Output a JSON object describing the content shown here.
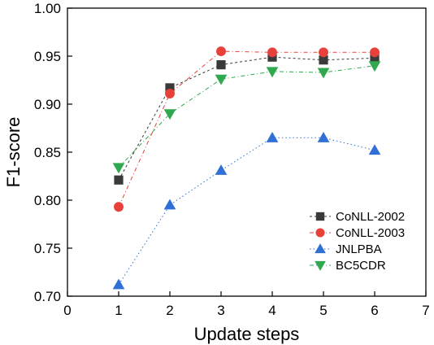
{
  "chart_data": {
    "type": "line",
    "xlabel": "Update steps",
    "ylabel": "F1-score",
    "xlim": [
      0,
      7
    ],
    "ylim": [
      0.7,
      1.0
    ],
    "xticks": [
      "0",
      "1",
      "2",
      "3",
      "4",
      "5",
      "6",
      "7"
    ],
    "yticks": [
      "0.70",
      "0.75",
      "0.80",
      "0.85",
      "0.90",
      "0.95",
      "1.00"
    ],
    "grid": false,
    "legend_position": "bottom-right",
    "series": [
      {
        "name": "CoNLL-2002",
        "marker": "square",
        "color": "#3a3a3a",
        "line_style": "dashed",
        "x": [
          1,
          2,
          3,
          4,
          5,
          6
        ],
        "y": [
          0.821,
          0.917,
          0.941,
          0.949,
          0.946,
          0.948
        ]
      },
      {
        "name": "CoNLL-2003",
        "marker": "circle",
        "color": "#e8403a",
        "line_style": "dashed",
        "x": [
          1,
          2,
          3,
          4,
          5,
          6
        ],
        "y": [
          0.793,
          0.911,
          0.955,
          0.954,
          0.954,
          0.954
        ]
      },
      {
        "name": "JNLPBA",
        "marker": "triangle-up",
        "color": "#2f6fd6",
        "line_style": "dashed",
        "x": [
          1,
          2,
          3,
          4,
          5,
          6
        ],
        "y": [
          0.712,
          0.795,
          0.831,
          0.865,
          0.865,
          0.852
        ]
      },
      {
        "name": "BC5CDR",
        "marker": "triangle-down",
        "color": "#2fa84f",
        "line_style": "dashed",
        "x": [
          1,
          2,
          3,
          4,
          5,
          6
        ],
        "y": [
          0.834,
          0.89,
          0.926,
          0.934,
          0.933,
          0.94
        ]
      }
    ]
  }
}
